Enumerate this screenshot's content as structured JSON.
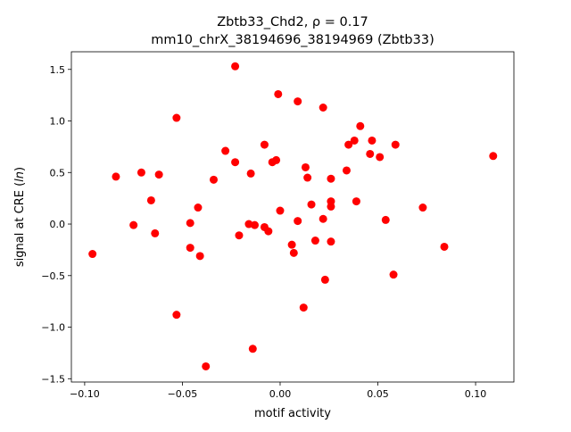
{
  "chart_data": {
    "type": "scatter",
    "title_line1": "Zbtb33_Chd2, ρ = 0.17",
    "title_line2": "mm10_chrX_38194696_38194969 (Zbtb33)",
    "xlabel": "motif activity",
    "ylabel_prefix": "signal at CRE (",
    "ylabel_italic": "ln",
    "ylabel_suffix": ")",
    "xlim": [
      -0.1068,
      0.1196
    ],
    "ylim": [
      -1.532,
      1.671
    ],
    "xticks": [
      -0.1,
      -0.05,
      0.0,
      0.05,
      0.1
    ],
    "xtick_labels": [
      "−0.10",
      "−0.05",
      "0.00",
      "0.05",
      "0.10"
    ],
    "yticks": [
      -1.5,
      -1.0,
      -0.5,
      0.0,
      0.5,
      1.0,
      1.5
    ],
    "ytick_labels": [
      "−1.5",
      "−1.0",
      "−0.5",
      "0.0",
      "0.5",
      "1.0",
      "1.5"
    ],
    "grid": false,
    "marker_color": "#ff0000",
    "points": [
      [
        -0.096,
        -0.29
      ],
      [
        -0.084,
        0.46
      ],
      [
        -0.075,
        -0.01
      ],
      [
        -0.071,
        0.5
      ],
      [
        -0.066,
        0.23
      ],
      [
        -0.064,
        -0.09
      ],
      [
        -0.062,
        0.48
      ],
      [
        -0.053,
        1.03
      ],
      [
        -0.053,
        -0.88
      ],
      [
        -0.046,
        0.01
      ],
      [
        -0.046,
        -0.23
      ],
      [
        -0.042,
        0.16
      ],
      [
        -0.041,
        -0.31
      ],
      [
        -0.038,
        -1.38
      ],
      [
        -0.034,
        0.43
      ],
      [
        -0.028,
        0.71
      ],
      [
        -0.023,
        1.53
      ],
      [
        -0.023,
        0.6
      ],
      [
        -0.021,
        -0.11
      ],
      [
        -0.016,
        0.0
      ],
      [
        -0.015,
        0.49
      ],
      [
        -0.014,
        -1.21
      ],
      [
        -0.013,
        -0.01
      ],
      [
        -0.008,
        0.77
      ],
      [
        -0.008,
        -0.03
      ],
      [
        -0.006,
        -0.07
      ],
      [
        -0.004,
        0.6
      ],
      [
        -0.002,
        0.62
      ],
      [
        -0.001,
        1.26
      ],
      [
        0.0,
        0.13
      ],
      [
        0.006,
        -0.2
      ],
      [
        0.007,
        -0.28
      ],
      [
        0.009,
        1.19
      ],
      [
        0.009,
        0.03
      ],
      [
        0.012,
        -0.81
      ],
      [
        0.013,
        0.55
      ],
      [
        0.014,
        0.45
      ],
      [
        0.016,
        0.19
      ],
      [
        0.018,
        -0.16
      ],
      [
        0.022,
        0.05
      ],
      [
        0.022,
        1.13
      ],
      [
        0.023,
        -0.54
      ],
      [
        0.026,
        0.22
      ],
      [
        0.026,
        0.17
      ],
      [
        0.026,
        -0.17
      ],
      [
        0.026,
        0.44
      ],
      [
        0.034,
        0.52
      ],
      [
        0.035,
        0.77
      ],
      [
        0.038,
        0.81
      ],
      [
        0.039,
        0.22
      ],
      [
        0.041,
        0.95
      ],
      [
        0.046,
        0.68
      ],
      [
        0.047,
        0.81
      ],
      [
        0.051,
        0.65
      ],
      [
        0.054,
        0.04
      ],
      [
        0.058,
        -0.49
      ],
      [
        0.059,
        0.77
      ],
      [
        0.073,
        0.16
      ],
      [
        0.084,
        -0.22
      ],
      [
        0.109,
        0.66
      ]
    ]
  }
}
